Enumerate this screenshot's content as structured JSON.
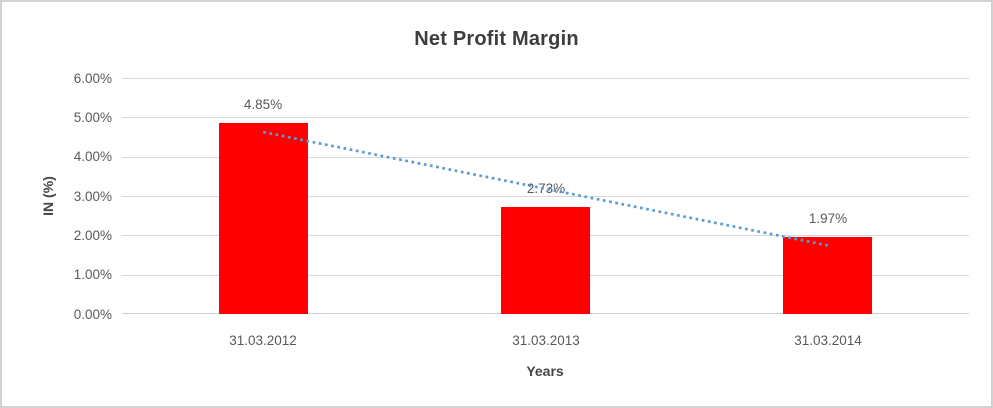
{
  "chart_data": {
    "type": "bar",
    "title": "Net Profit Margin",
    "categories": [
      "31.03.2012",
      "31.03.2013",
      "31.03.2014"
    ],
    "values": [
      4.85,
      2.73,
      1.97
    ],
    "data_labels": [
      "4.85%",
      "2.73%",
      "1.97%"
    ],
    "xlabel": "Years",
    "ylabel": "IN (%)",
    "ylim": [
      0,
      6
    ],
    "ytick_values": [
      0,
      1,
      2,
      3,
      4,
      5,
      6
    ],
    "ytick_labels": [
      "0.00%",
      "1.00%",
      "2.00%",
      "3.00%",
      "4.00%",
      "5.00%",
      "6.00%"
    ],
    "grid": true,
    "legend_position": "none",
    "bar_color": "#ff0000",
    "gridline_color": "#d9d9d9",
    "trendline": {
      "type": "linear",
      "style": "dotted",
      "color": "#5B9BD5"
    },
    "text_color": "#595959",
    "title_color": "#3d3d3d",
    "border_color": "#d2d2d2"
  }
}
